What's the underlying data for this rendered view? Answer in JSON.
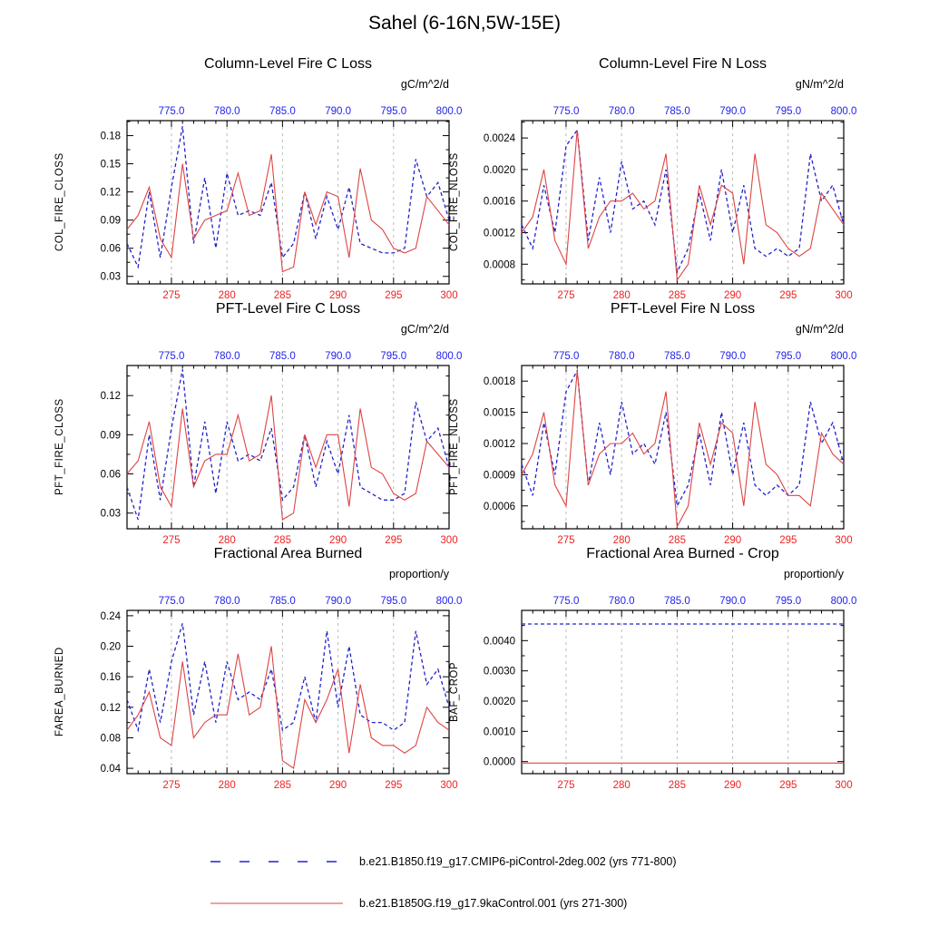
{
  "page_title": "Sahel (6-16N,5W-15E)",
  "colors": {
    "frame": "#000000",
    "grid": "#b5b5b5",
    "x_bottom_label": "#ee2222",
    "x_top_label": "#2222ee",
    "blue_line": "#2222cc",
    "red_line": "#dd4444"
  },
  "axes": {
    "bottom": {
      "range": [
        271,
        300
      ],
      "ticks": [
        275,
        280,
        285,
        290,
        295,
        300
      ],
      "labels": [
        "275",
        "280",
        "285",
        "290",
        "295",
        "300"
      ]
    },
    "top": {
      "labels": [
        "775.0",
        "780.0",
        "785.0",
        "790.0",
        "795.0",
        "800.0"
      ]
    }
  },
  "legend": {
    "entries": [
      {
        "label": "b.e21.B1850.f19_g17.CMIP6-piControl-2deg.002 (yrs 771-800)",
        "color": "#2222cc",
        "style": "dashed"
      },
      {
        "label": "b.e21.B1850G.f19_g17.9kaControl.001 (yrs 271-300)",
        "color": "#dd4444",
        "style": "solid"
      }
    ]
  },
  "chart_data": [
    {
      "type": "line",
      "title": "Column-Level Fire C Loss",
      "ylabel": "COL_FIRE_CLOSS",
      "units": "gC/m^2/d",
      "ylim": [
        0.022,
        0.196
      ],
      "yticks": [
        0.03,
        0.06,
        0.09,
        0.12,
        0.15,
        0.18
      ],
      "ytick_labels": [
        "0.03",
        "0.06",
        "0.09",
        "0.12",
        "0.15",
        "0.18"
      ],
      "series": [
        {
          "name": "b.e21.B1850.f19_g17.CMIP6-piControl-2deg.002",
          "years": "771-800",
          "color": "#2222cc",
          "dash": "dashed",
          "values": [
            0.065,
            0.04,
            0.12,
            0.05,
            0.125,
            0.19,
            0.065,
            0.135,
            0.06,
            0.14,
            0.095,
            0.1,
            0.095,
            0.13,
            0.05,
            0.065,
            0.12,
            0.07,
            0.115,
            0.08,
            0.125,
            0.065,
            0.06,
            0.055,
            0.055,
            0.06,
            0.155,
            0.115,
            0.13,
            0.09
          ]
        },
        {
          "name": "b.e21.B1850G.f19_g17.9kaControl.001",
          "years": "271-300",
          "color": "#dd4444",
          "dash": "solid",
          "values": [
            0.08,
            0.095,
            0.125,
            0.07,
            0.05,
            0.15,
            0.07,
            0.09,
            0.095,
            0.1,
            0.14,
            0.095,
            0.1,
            0.16,
            0.035,
            0.04,
            0.12,
            0.085,
            0.12,
            0.115,
            0.05,
            0.145,
            0.09,
            0.08,
            0.06,
            0.055,
            0.06,
            0.115,
            0.1,
            0.085
          ]
        }
      ]
    },
    {
      "type": "line",
      "title": "Column-Level Fire N Loss",
      "ylabel": "COL_FIRE_NLOSS",
      "units": "gN/m^2/d",
      "ylim": [
        0.00055,
        0.00262
      ],
      "yticks": [
        0.0008,
        0.0012,
        0.0016,
        0.002,
        0.0024
      ],
      "ytick_labels": [
        "0.0008",
        "0.0012",
        "0.0016",
        "0.0020",
        "0.0024"
      ],
      "series": [
        {
          "name": "b.e21.B1850.f19_g17.CMIP6-piControl-2deg.002",
          "years": "771-800",
          "color": "#2222cc",
          "dash": "dashed",
          "values": [
            0.0013,
            0.001,
            0.0018,
            0.0012,
            0.0023,
            0.0025,
            0.0011,
            0.0019,
            0.0012,
            0.0021,
            0.0015,
            0.0016,
            0.0013,
            0.002,
            0.0007,
            0.001,
            0.0017,
            0.0011,
            0.002,
            0.0012,
            0.0018,
            0.001,
            0.0009,
            0.001,
            0.0009,
            0.001,
            0.0022,
            0.0016,
            0.0018,
            0.0013
          ]
        },
        {
          "name": "b.e21.B1850G.f19_g17.9kaControl.001",
          "years": "271-300",
          "color": "#dd4444",
          "dash": "solid",
          "values": [
            0.0012,
            0.0014,
            0.002,
            0.0011,
            0.0008,
            0.0025,
            0.001,
            0.0014,
            0.0016,
            0.0016,
            0.0017,
            0.0015,
            0.0016,
            0.0022,
            0.0006,
            0.0008,
            0.0018,
            0.0013,
            0.0018,
            0.0017,
            0.0008,
            0.0022,
            0.0013,
            0.0012,
            0.001,
            0.0009,
            0.001,
            0.0017,
            0.0015,
            0.0013
          ]
        }
      ]
    },
    {
      "type": "line",
      "title": "PFT-Level Fire C Loss",
      "ylabel": "PFT_FIRE_CLOSS",
      "units": "gC/m^2/d",
      "ylim": [
        0.018,
        0.143
      ],
      "yticks": [
        0.03,
        0.06,
        0.09,
        0.12
      ],
      "ytick_labels": [
        "0.03",
        "0.06",
        "0.09",
        "0.12"
      ],
      "series": [
        {
          "name": "b.e21.B1850.f19_g17.CMIP6-piControl-2deg.002",
          "years": "771-800",
          "color": "#2222cc",
          "dash": "dashed",
          "values": [
            0.05,
            0.025,
            0.09,
            0.04,
            0.095,
            0.14,
            0.05,
            0.1,
            0.045,
            0.1,
            0.07,
            0.075,
            0.07,
            0.095,
            0.04,
            0.05,
            0.09,
            0.05,
            0.085,
            0.06,
            0.105,
            0.05,
            0.045,
            0.04,
            0.04,
            0.045,
            0.115,
            0.085,
            0.095,
            0.065
          ]
        },
        {
          "name": "b.e21.B1850G.f19_g17.9kaControl.001",
          "years": "271-300",
          "color": "#dd4444",
          "dash": "solid",
          "values": [
            0.06,
            0.07,
            0.1,
            0.05,
            0.035,
            0.11,
            0.05,
            0.07,
            0.075,
            0.075,
            0.105,
            0.07,
            0.075,
            0.12,
            0.025,
            0.03,
            0.09,
            0.065,
            0.09,
            0.09,
            0.035,
            0.11,
            0.065,
            0.06,
            0.045,
            0.04,
            0.045,
            0.085,
            0.075,
            0.065
          ]
        }
      ]
    },
    {
      "type": "line",
      "title": "PFT-Level Fire N Loss",
      "ylabel": "PFT_FIRE_NLOSS",
      "units": "gN/m^2/d",
      "ylim": [
        0.00038,
        0.00195
      ],
      "yticks": [
        0.0006,
        0.0009,
        0.0012,
        0.0015,
        0.0018
      ],
      "ytick_labels": [
        "0.0006",
        "0.0009",
        "0.0012",
        "0.0015",
        "0.0018"
      ],
      "series": [
        {
          "name": "b.e21.B1850.f19_g17.CMIP6-piControl-2deg.002",
          "years": "771-800",
          "color": "#2222cc",
          "dash": "dashed",
          "values": [
            0.001,
            0.0007,
            0.0014,
            0.0009,
            0.0017,
            0.0019,
            0.0008,
            0.0014,
            0.0009,
            0.0016,
            0.0011,
            0.0012,
            0.001,
            0.0015,
            0.0006,
            0.0008,
            0.0013,
            0.0008,
            0.0015,
            0.0009,
            0.0014,
            0.0008,
            0.0007,
            0.0008,
            0.0007,
            0.0008,
            0.0016,
            0.0012,
            0.0014,
            0.001
          ]
        },
        {
          "name": "b.e21.B1850G.f19_g17.9kaControl.001",
          "years": "271-300",
          "color": "#dd4444",
          "dash": "solid",
          "values": [
            0.0009,
            0.0011,
            0.0015,
            0.0008,
            0.0006,
            0.0019,
            0.0008,
            0.0011,
            0.0012,
            0.0012,
            0.0013,
            0.0011,
            0.0012,
            0.0017,
            0.0004,
            0.0006,
            0.0014,
            0.001,
            0.0014,
            0.0013,
            0.0006,
            0.0016,
            0.001,
            0.0009,
            0.0007,
            0.0007,
            0.0006,
            0.0013,
            0.0011,
            0.001
          ]
        }
      ]
    },
    {
      "type": "line",
      "title": "Fractional Area Burned",
      "ylabel": "FAREA_BURNED",
      "units": "proportion/y",
      "ylim": [
        0.033,
        0.247
      ],
      "yticks": [
        0.04,
        0.08,
        0.12,
        0.16,
        0.2,
        0.24
      ],
      "ytick_labels": [
        "0.04",
        "0.08",
        "0.12",
        "0.16",
        "0.20",
        "0.24"
      ],
      "series": [
        {
          "name": "b.e21.B1850.f19_g17.CMIP6-piControl-2deg.002",
          "years": "771-800",
          "color": "#2222cc",
          "dash": "dashed",
          "values": [
            0.13,
            0.09,
            0.17,
            0.1,
            0.18,
            0.23,
            0.11,
            0.18,
            0.1,
            0.18,
            0.13,
            0.14,
            0.13,
            0.17,
            0.09,
            0.1,
            0.16,
            0.1,
            0.22,
            0.12,
            0.2,
            0.11,
            0.1,
            0.1,
            0.09,
            0.1,
            0.22,
            0.15,
            0.17,
            0.12
          ]
        },
        {
          "name": "b.e21.B1850G.f19_g17.9kaControl.001",
          "years": "271-300",
          "color": "#dd4444",
          "dash": "solid",
          "values": [
            0.09,
            0.11,
            0.14,
            0.08,
            0.07,
            0.18,
            0.08,
            0.1,
            0.11,
            0.11,
            0.19,
            0.11,
            0.12,
            0.2,
            0.05,
            0.04,
            0.13,
            0.1,
            0.13,
            0.17,
            0.06,
            0.15,
            0.08,
            0.07,
            0.07,
            0.06,
            0.07,
            0.12,
            0.1,
            0.09
          ]
        }
      ]
    },
    {
      "type": "line",
      "title": "Fractional Area Burned - Crop",
      "ylabel": "BAF_CROP",
      "units": "proportion/y",
      "ylim": [
        -0.0004,
        0.005
      ],
      "yticks": [
        0.0,
        0.001,
        0.002,
        0.003,
        0.004
      ],
      "ytick_labels": [
        "0.0000",
        "0.0010",
        "0.0020",
        "0.0030",
        "0.0040"
      ],
      "series": [
        {
          "name": "b.e21.B1850.f19_g17.CMIP6-piControl-2deg.002",
          "years": "771-800",
          "color": "#2222cc",
          "dash": "dashed",
          "values": [
            0.00455,
            0.00455,
            0.00455,
            0.00455,
            0.00455,
            0.00455,
            0.00455,
            0.00455,
            0.00455,
            0.00455,
            0.00455,
            0.00455,
            0.00455,
            0.00455,
            0.00455,
            0.00455,
            0.00455,
            0.00455,
            0.00455,
            0.00455,
            0.00455,
            0.00455,
            0.00455,
            0.00455,
            0.00455,
            0.00455,
            0.00455,
            0.00455,
            0.00455,
            0.00455
          ]
        },
        {
          "name": "b.e21.B1850G.f19_g17.9kaControl.001",
          "years": "271-300",
          "color": "#dd4444",
          "dash": "solid",
          "values": [
            -5e-05,
            -5e-05,
            -5e-05,
            -5e-05,
            -5e-05,
            -5e-05,
            -5e-05,
            -5e-05,
            -5e-05,
            -5e-05,
            -5e-05,
            -5e-05,
            -5e-05,
            -5e-05,
            -5e-05,
            -5e-05,
            -5e-05,
            -5e-05,
            -5e-05,
            -5e-05,
            -5e-05,
            -5e-05,
            -5e-05,
            -5e-05,
            -5e-05,
            -5e-05,
            -5e-05,
            -5e-05,
            -5e-05,
            -5e-05
          ]
        }
      ]
    }
  ]
}
